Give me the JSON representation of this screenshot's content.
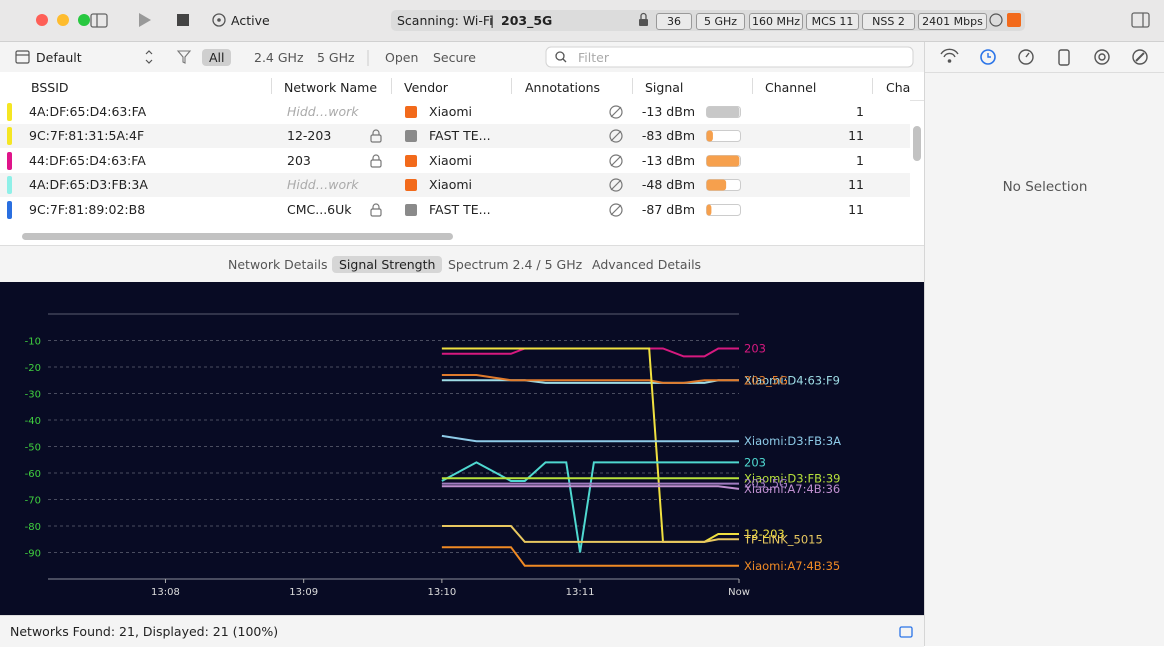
{
  "toolbar": {
    "status": "Active",
    "scanning": "Scanning: Wi-Fi",
    "separator": "|",
    "network": "203_5G",
    "chips": [
      "36",
      "5 GHz",
      "160 MHz",
      "MCS 11",
      "NSS 2",
      "2401 Mbps"
    ]
  },
  "filterbar": {
    "profile": "Default",
    "filters": [
      "All",
      "2.4 GHz",
      "5 GHz",
      "Open",
      "Secure"
    ],
    "search_placeholder": "Filter"
  },
  "table": {
    "columns": [
      "BSSID",
      "Network Name",
      "Vendor",
      "Annotations",
      "Signal",
      "Channel",
      "Cha"
    ],
    "rows": [
      {
        "color": "#f5e623",
        "bssid": "4A:DF:65:D4:63:FA",
        "name": "Hidd…work",
        "hidden": true,
        "secure": false,
        "vendor": "Xiaomi",
        "vendor_color": "#f26a1b",
        "signal": -13,
        "signal_label": "-13 dBm",
        "bar_color": "#c8c8c8",
        "channel": 1
      },
      {
        "color": "#f5e623",
        "bssid": "9C:7F:81:31:5A:4F",
        "name": "12-203",
        "hidden": false,
        "secure": true,
        "vendor": "FAST TE...",
        "vendor_color": "#8a8a8a",
        "signal": -83,
        "signal_label": "-83 dBm",
        "bar_color": "#f6a04d",
        "channel": 11
      },
      {
        "color": "#e0148a",
        "bssid": "44:DF:65:D4:63:FA",
        "name": "203",
        "hidden": false,
        "secure": true,
        "vendor": "Xiaomi",
        "vendor_color": "#f26a1b",
        "signal": -13,
        "signal_label": "-13 dBm",
        "bar_color": "#f6a04d",
        "channel": 1
      },
      {
        "color": "#8ff0e8",
        "bssid": "4A:DF:65:D3:FB:3A",
        "name": "Hidd…work",
        "hidden": true,
        "secure": false,
        "vendor": "Xiaomi",
        "vendor_color": "#f26a1b",
        "signal": -48,
        "signal_label": "-48 dBm",
        "bar_color": "#f6a04d",
        "channel": 11
      },
      {
        "color": "#2a6fe0",
        "bssid": "9C:7F:81:89:02:B8",
        "name": "CMC...6Uk",
        "hidden": false,
        "secure": true,
        "vendor": "FAST TE...",
        "vendor_color": "#8a8a8a",
        "signal": -87,
        "signal_label": "-87 dBm",
        "bar_color": "#f6a04d",
        "channel": 11
      }
    ]
  },
  "tabs": [
    "Network Details",
    "Signal Strength",
    "Spectrum 2.4 / 5 GHz",
    "Advanced Details"
  ],
  "active_tab": 1,
  "chart_data": {
    "type": "line",
    "x": [
      10.0,
      10.25,
      10.5,
      10.6,
      10.75,
      10.9,
      11.0,
      11.1,
      11.25,
      11.5,
      11.6,
      11.75,
      11.9,
      12.0,
      12.15
    ],
    "xlim": [
      7.15,
      12.15
    ],
    "xticks": [
      {
        "value": 8,
        "label": "13:08"
      },
      {
        "value": 9,
        "label": "13:09"
      },
      {
        "value": 10,
        "label": "13:10"
      },
      {
        "value": 11,
        "label": "13:11"
      },
      {
        "value": 12.15,
        "label": "Now"
      }
    ],
    "ylim": [
      -100,
      0
    ],
    "yticks": [
      -10,
      -20,
      -30,
      -40,
      -50,
      -60,
      -70,
      -80,
      -90
    ],
    "grid": true,
    "series": [
      {
        "name": "203",
        "color": "#d6197f",
        "values": [
          -15,
          -15,
          -15,
          -13,
          -13,
          -13,
          -13,
          -13,
          -13,
          -13,
          -13,
          -16,
          -16,
          -13,
          -13
        ]
      },
      {
        "name": "Xiaomi:D4:63:F9",
        "color": "#9fdde6",
        "values": [
          -25,
          -25,
          -25,
          -25,
          -26,
          -26,
          -26,
          -26,
          -26,
          -26,
          -26,
          -26,
          -26,
          -25,
          -25
        ]
      },
      {
        "name": "203_5G",
        "color": "#e07b2c",
        "values": [
          -23,
          -23,
          -25,
          -25,
          -25,
          -25,
          -25,
          -25,
          -25,
          -25,
          -26,
          -26,
          -25,
          -25,
          -25
        ]
      },
      {
        "name": "12-203",
        "color": "#f0e040",
        "values": [
          -13,
          -13,
          -13,
          -13,
          -13,
          -13,
          -13,
          -13,
          -13,
          -13,
          -86,
          -86,
          -86,
          -83,
          -83
        ]
      },
      {
        "name": "Xiaomi:D3:FB:3A",
        "color": "#8ecbe8",
        "values": [
          -46,
          -48,
          -48,
          -48,
          -48,
          -48,
          -48,
          -48,
          -48,
          -48,
          -48,
          -48,
          -48,
          -48,
          -48
        ]
      },
      {
        "name": "203",
        "color": "#4fd8d0",
        "values": [
          -63,
          -56,
          -63,
          -63,
          -56,
          -56,
          -90,
          -56,
          -56,
          -56,
          -56,
          -56,
          -56,
          -56,
          -56
        ]
      },
      {
        "name": "Xiaomi:D3:FB:39",
        "color": "#b7e23b",
        "values": [
          -62,
          -62,
          -62,
          -62,
          -62,
          -62,
          -62,
          -62,
          -62,
          -62,
          -62,
          -62,
          -62,
          -62,
          -62
        ]
      },
      {
        "name": "203_5G",
        "color": "#a07cc0",
        "values": [
          -64,
          -64,
          -64,
          -64,
          -64,
          -64,
          -64,
          -64,
          -64,
          -64,
          -64,
          -64,
          -64,
          -64,
          -64
        ]
      },
      {
        "name": "Xiaomi:A7:4B:36",
        "color": "#c090d0",
        "values": [
          -65,
          -65,
          -65,
          -65,
          -65,
          -65,
          -65,
          -65,
          -65,
          -65,
          -65,
          -65,
          -65,
          -65,
          -66
        ]
      },
      {
        "name": "TP-LINK_5015",
        "color": "#e8c860",
        "values": [
          -80,
          -80,
          -80,
          -86,
          -86,
          -86,
          -86,
          -86,
          -86,
          -86,
          -86,
          -86,
          -86,
          -85,
          -85
        ]
      },
      {
        "name": "Xiaomi:A7:4B:35",
        "color": "#f08a24",
        "values": [
          -88,
          -88,
          -88,
          -95,
          -95,
          -95,
          -95,
          -95,
          -95,
          -95,
          -95,
          -95,
          -95,
          -95,
          -95
        ]
      }
    ]
  },
  "sidebar": {
    "empty": "No Selection"
  },
  "statusbar": {
    "text": "Networks Found: 21, Displayed: 21 (100%)"
  }
}
